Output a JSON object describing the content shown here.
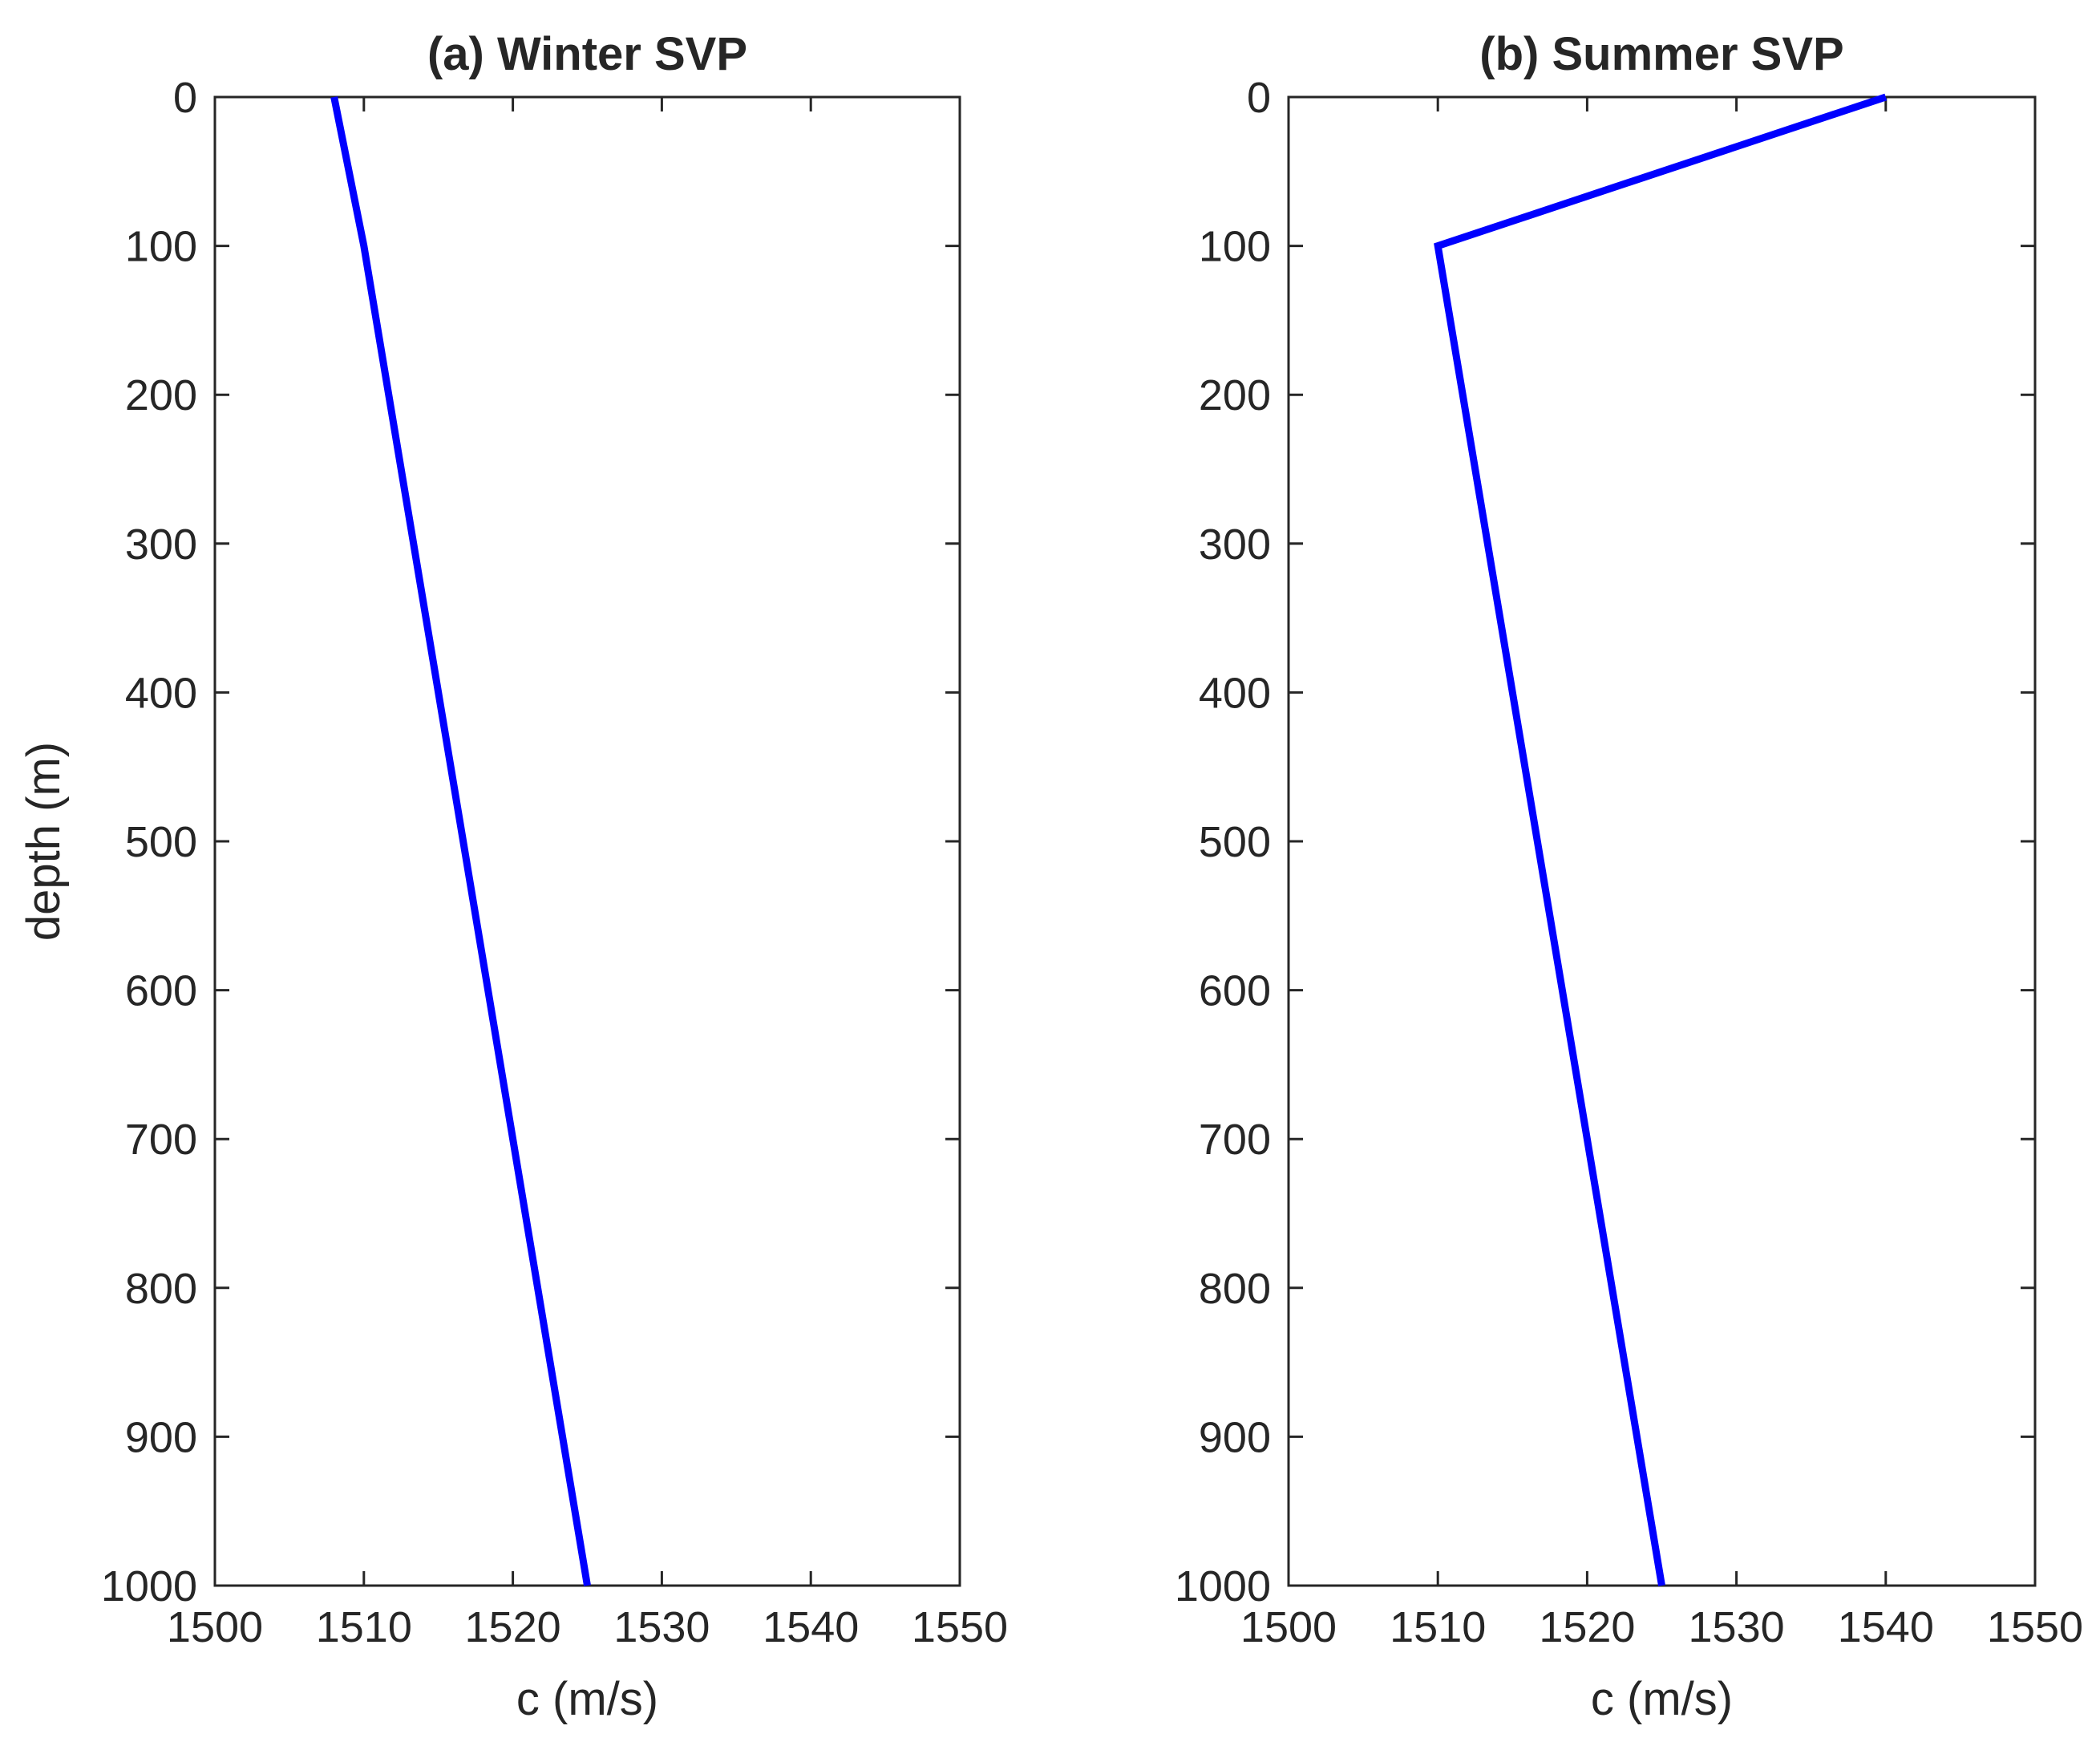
{
  "chart_data": [
    {
      "type": "line",
      "title": "(a) Winter SVP",
      "xlabel": "c (m/s)",
      "ylabel": "depth (m)",
      "xlim": [
        1500,
        1550
      ],
      "ylim": [
        0,
        1000
      ],
      "y_reversed": true,
      "grid": false,
      "xticks": [
        "1500",
        "1510",
        "1520",
        "1530",
        "1540",
        "1550"
      ],
      "yticks": [
        "0",
        "100",
        "200",
        "300",
        "400",
        "500",
        "600",
        "700",
        "800",
        "900",
        "1000"
      ],
      "series": [
        {
          "color": "#0000ff",
          "x": [
            1508,
            1510,
            1525
          ],
          "y": [
            0,
            100,
            1000
          ]
        }
      ]
    },
    {
      "type": "line",
      "title": "(b) Summer SVP",
      "xlabel": "c (m/s)",
      "ylabel": "",
      "xlim": [
        1500,
        1550
      ],
      "ylim": [
        0,
        1000
      ],
      "y_reversed": true,
      "grid": false,
      "xticks": [
        "1500",
        "1510",
        "1520",
        "1530",
        "1540",
        "1550"
      ],
      "yticks": [
        "0",
        "100",
        "200",
        "300",
        "400",
        "500",
        "600",
        "700",
        "800",
        "900",
        "1000"
      ],
      "series": [
        {
          "color": "#0000ff",
          "x": [
            1540,
            1510,
            1525
          ],
          "y": [
            0,
            100,
            1000
          ]
        }
      ]
    }
  ]
}
